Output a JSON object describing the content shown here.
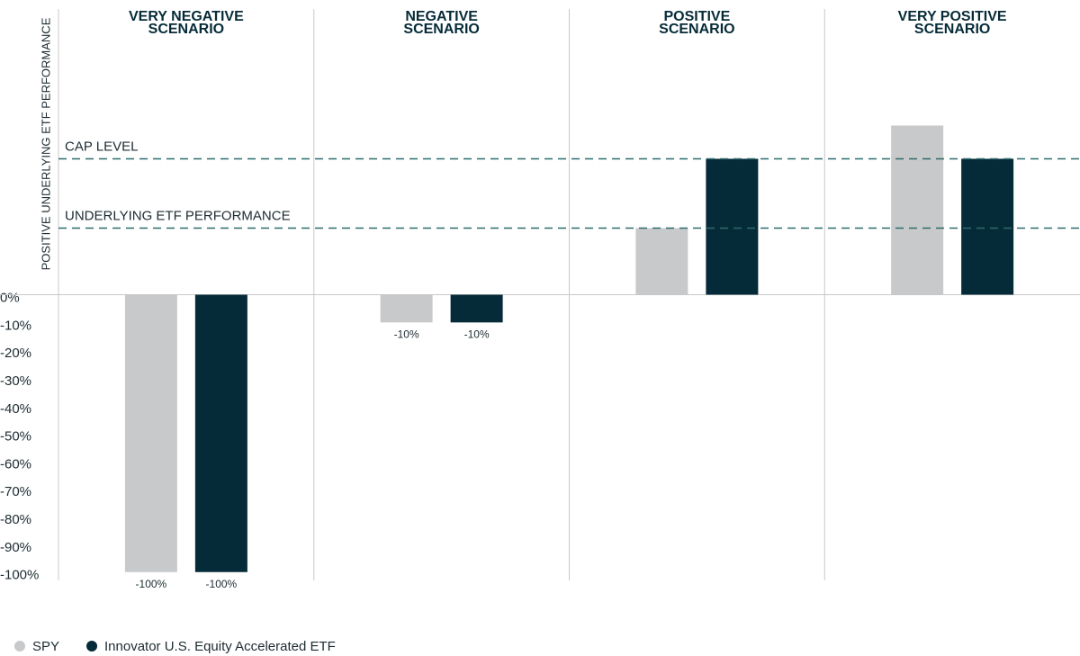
{
  "chart_data": {
    "type": "bar",
    "y_label": "POSITIVE UNDERLYING ETF PERFORMANCE",
    "categories": [
      "VERY NEGATIVE SCENARIO",
      "NEGATIVE SCENARIO",
      "POSITIVE SCENARIO",
      "VERY POSITIVE SCENARIO"
    ],
    "series": [
      {
        "name": "SPY",
        "color": "#c8c9cb",
        "values": [
          -100,
          -10,
          24,
          61
        ],
        "value_labels": [
          "-100%",
          "-10%",
          null,
          null
        ]
      },
      {
        "name": "Innovator U.S. Equity Accelerated ETF",
        "color": "#062b38",
        "values": [
          -100,
          -10,
          49,
          49
        ],
        "value_labels": [
          "-100%",
          "-10%",
          null,
          null
        ]
      }
    ],
    "reference_lines": [
      {
        "label": "CAP LEVEL",
        "value": 49,
        "color": "#2e6b6b"
      },
      {
        "label": "UNDERLYING ETF PERFORMANCE",
        "value": 24,
        "color": "#2e6b6b"
      }
    ],
    "ylim": [
      -103,
      103
    ],
    "yticks": [
      {
        "value": 0,
        "label": "0%"
      },
      {
        "value": -10,
        "label": "-10%"
      },
      {
        "value": -20,
        "label": "-20%"
      },
      {
        "value": -30,
        "label": "-30%"
      },
      {
        "value": -40,
        "label": "-40%"
      },
      {
        "value": -50,
        "label": "-50%"
      },
      {
        "value": -60,
        "label": "-60%"
      },
      {
        "value": -70,
        "label": "-70%"
      },
      {
        "value": -80,
        "label": "-80%"
      },
      {
        "value": -90,
        "label": "-90%"
      },
      {
        "value": -100,
        "label": "-100%"
      }
    ],
    "grid": false,
    "legend": "bottom-left"
  }
}
